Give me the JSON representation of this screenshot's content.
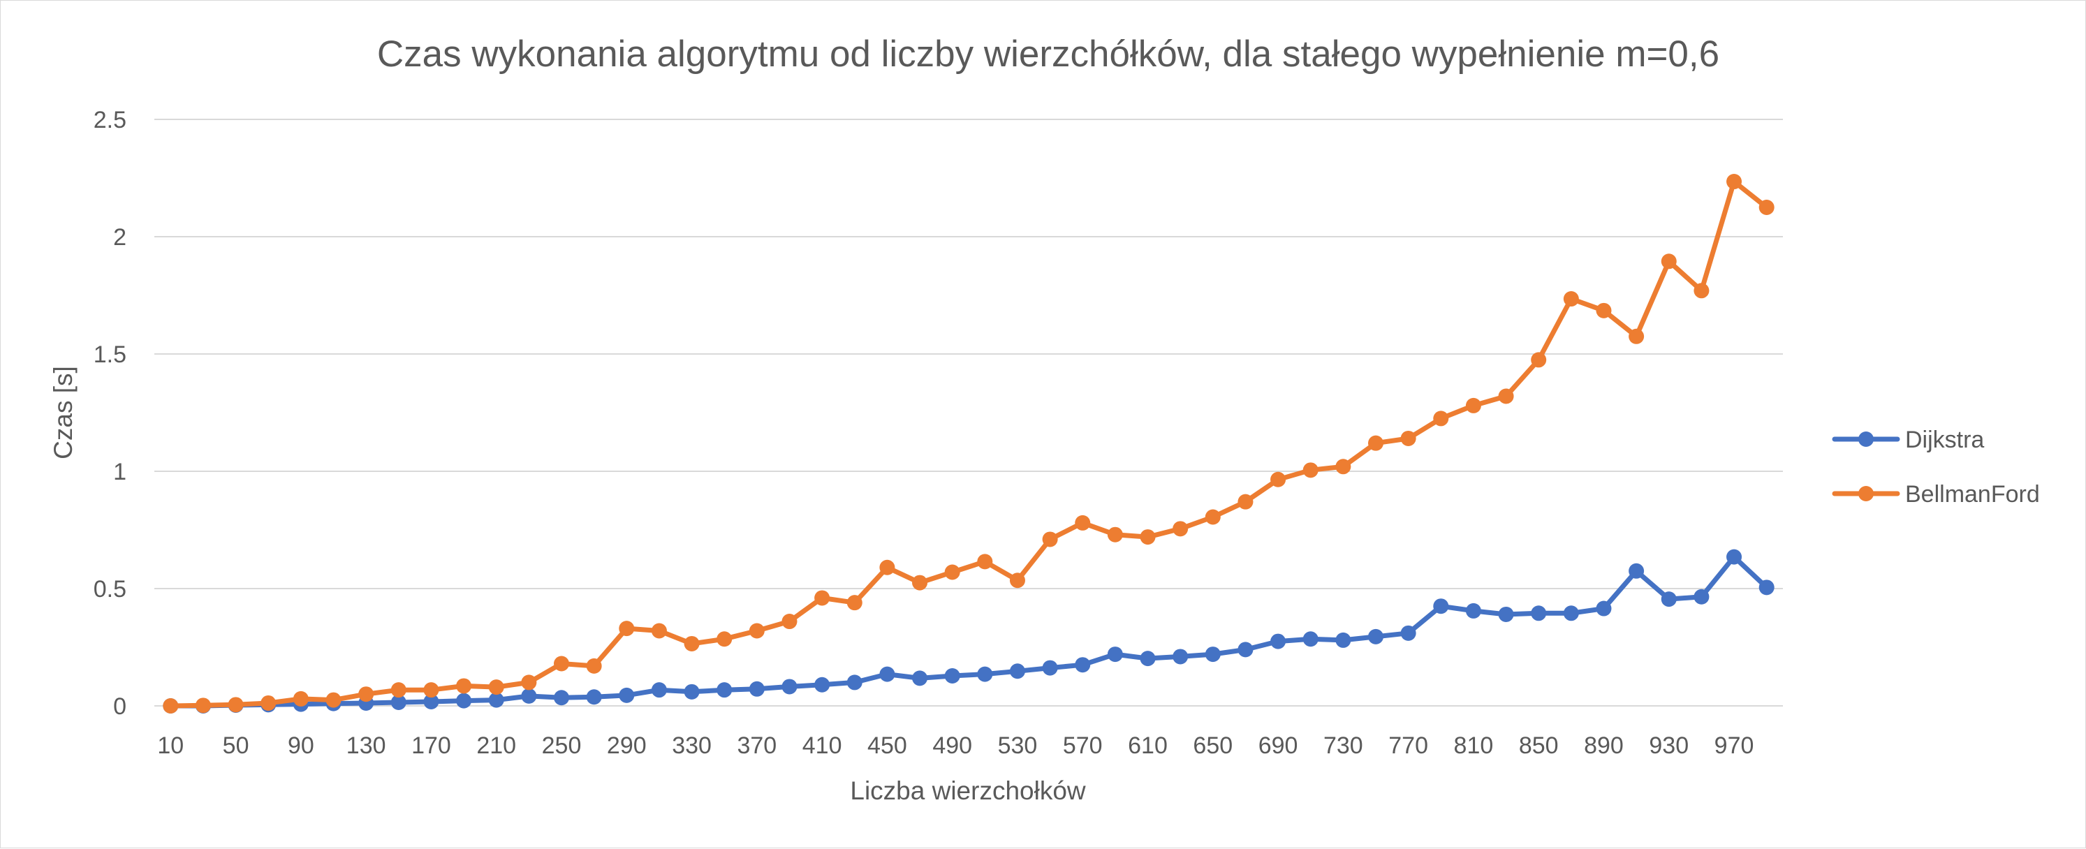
{
  "chart_data": {
    "type": "line",
    "title": "Czas wykonania algorytmu od liczby wierzchółków, dla stałego wypełnienie m=0,6",
    "xlabel": "Liczba wierzchołków",
    "ylabel": "Czas [s]",
    "ylim": [
      0,
      2.5
    ],
    "yticks": [
      "0",
      "0.5",
      "1",
      "1.5",
      "2",
      "2.5"
    ],
    "xtick_labels": [
      "10",
      "50",
      "90",
      "130",
      "170",
      "210",
      "250",
      "290",
      "330",
      "370",
      "410",
      "450",
      "490",
      "530",
      "570",
      "610",
      "650",
      "690",
      "730",
      "770",
      "810",
      "850",
      "890",
      "930",
      "970"
    ],
    "x": [
      10,
      30,
      50,
      70,
      90,
      110,
      130,
      150,
      170,
      190,
      210,
      230,
      250,
      270,
      290,
      310,
      330,
      350,
      370,
      390,
      410,
      430,
      450,
      470,
      490,
      510,
      530,
      550,
      570,
      590,
      610,
      630,
      650,
      670,
      690,
      710,
      730,
      750,
      770,
      790,
      810,
      830,
      850,
      870,
      890,
      910,
      930,
      950,
      970,
      990
    ],
    "grid": true,
    "legend_position": "right",
    "series": [
      {
        "name": "Dijkstra",
        "color": "#4472c4",
        "values": [
          0.0,
          0.0,
          0.003,
          0.005,
          0.007,
          0.01,
          0.012,
          0.015,
          0.018,
          0.022,
          0.025,
          0.042,
          0.035,
          0.038,
          0.045,
          0.068,
          0.06,
          0.068,
          0.072,
          0.082,
          0.09,
          0.1,
          0.135,
          0.118,
          0.128,
          0.135,
          0.148,
          0.162,
          0.175,
          0.22,
          0.202,
          0.21,
          0.22,
          0.24,
          0.275,
          0.285,
          0.28,
          0.295,
          0.31,
          0.425,
          0.405,
          0.39,
          0.395,
          0.395,
          0.415,
          0.575,
          0.455,
          0.465,
          0.635,
          0.505
        ]
      },
      {
        "name": "BellmanFord",
        "color": "#ed7d31",
        "values": [
          0.0,
          0.002,
          0.005,
          0.012,
          0.03,
          0.025,
          0.05,
          0.068,
          0.068,
          0.085,
          0.08,
          0.1,
          0.18,
          0.17,
          0.33,
          0.32,
          0.265,
          0.285,
          0.32,
          0.36,
          0.46,
          0.44,
          0.59,
          0.525,
          0.57,
          0.615,
          0.535,
          0.71,
          0.78,
          0.73,
          0.72,
          0.755,
          0.805,
          0.87,
          0.965,
          1.005,
          1.02,
          1.12,
          1.14,
          1.225,
          1.28,
          1.32,
          1.475,
          1.735,
          1.685,
          1.575,
          1.895,
          1.77,
          2.235,
          2.125
        ]
      }
    ]
  }
}
